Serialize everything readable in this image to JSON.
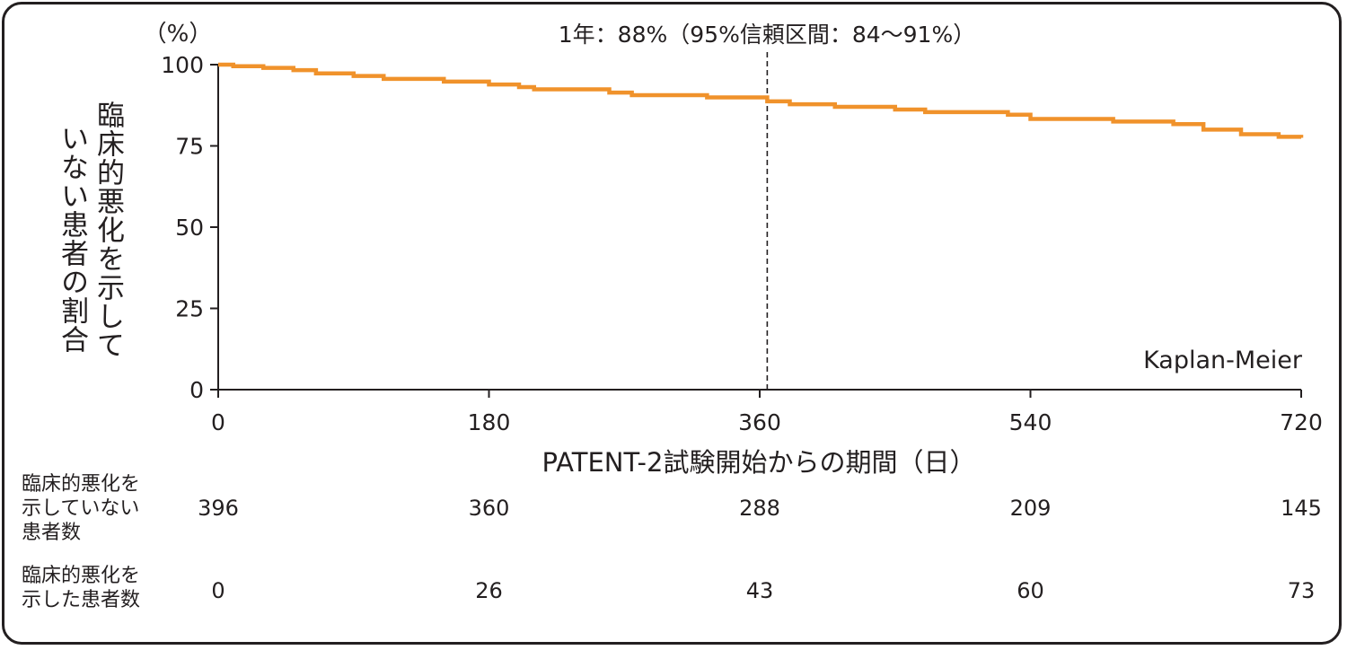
{
  "chart_data": {
    "type": "line",
    "step": true,
    "title": "",
    "annotation": "1年：88%（95%信頼区間：84〜91%）",
    "annotation_x": 365,
    "method_label": "Kaplan-Meier",
    "y_unit": "（%）",
    "ylabel_lines": [
      "臨床的悪化を示して",
      "いない患者の割合"
    ],
    "xlabel": "PATENT-2試験開始からの期間（日）",
    "xlim": [
      0,
      720
    ],
    "ylim": [
      0,
      100
    ],
    "xticks": [
      0,
      180,
      360,
      540,
      720
    ],
    "yticks": [
      0,
      25,
      50,
      75,
      100
    ],
    "grid": false,
    "line_color": "#f0922b",
    "series": [
      {
        "x": [
          0,
          10,
          30,
          50,
          65,
          90,
          110,
          150,
          180,
          200,
          210,
          260,
          275,
          325,
          365,
          380,
          410,
          450,
          470,
          525,
          540,
          595,
          635,
          655,
          680,
          705,
          720
        ],
        "y": [
          100,
          99.5,
          99,
          98.3,
          97.3,
          96.5,
          95.6,
          94.8,
          93.9,
          93.1,
          92.4,
          91.4,
          90.6,
          89.9,
          88.7,
          87.8,
          87.0,
          86.2,
          85.4,
          84.6,
          83.3,
          82.5,
          81.7,
          80.0,
          78.6,
          77.8,
          77.5
        ]
      }
    ]
  },
  "risk_table": {
    "rows": [
      {
        "label": "臨床的悪化を\n示していない\n患者数",
        "values": [
          "396",
          "360",
          "288",
          "209",
          "145"
        ]
      },
      {
        "label": "臨床的悪化を\n示した患者数",
        "values": [
          "0",
          "26",
          "43",
          "60",
          "73"
        ]
      }
    ]
  }
}
